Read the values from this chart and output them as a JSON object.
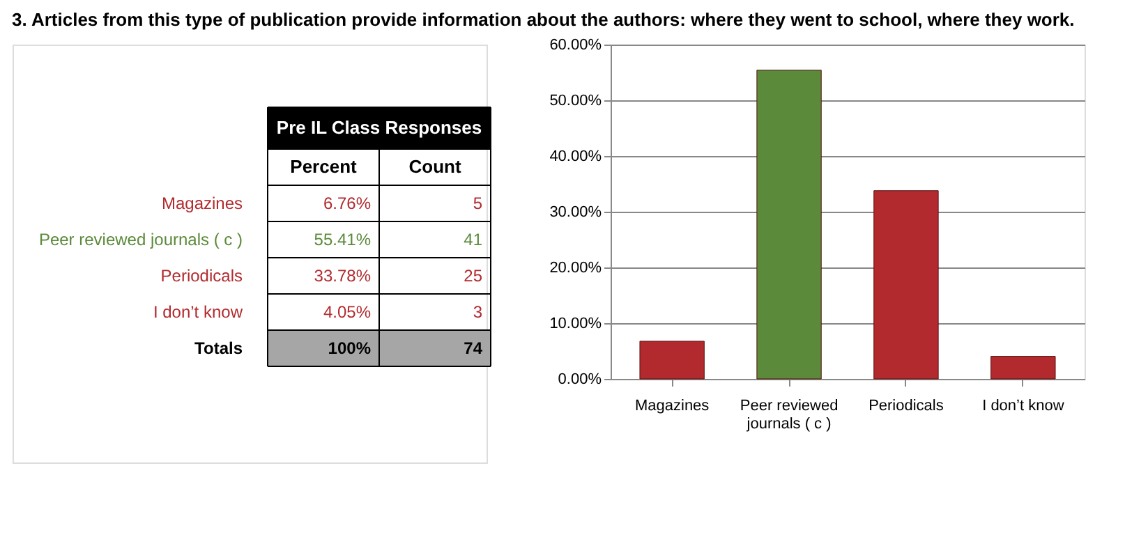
{
  "chart_data": [
    {
      "type": "other",
      "title": "3. Articles from this type of publication provide information about the authors: where they went to school, where they work.",
      "subtitle": "Pre IL Class Responses",
      "annotations": [
        "Percent",
        "Count",
        "Magazines",
        "6.76%",
        "5",
        "Peer reviewed journals ( c )",
        "55.41%",
        "41",
        "Periodicals",
        "33.78%",
        "25",
        "I don’t know",
        "4.05%",
        "3",
        "Totals",
        "100%",
        "74"
      ]
    },
    {
      "type": "bar",
      "categories": [
        "Magazines",
        "Peer reviewed journals ( c )",
        "Periodicals",
        "I don’t know"
      ],
      "values": [
        6.76,
        55.41,
        33.78,
        4.05
      ],
      "colors": [
        "#b22a2e",
        "#5b8a3a",
        "#b22a2e",
        "#b22a2e"
      ],
      "ylim": [
        0,
        60
      ],
      "yticks": [
        {
          "value": 0,
          "label": "0.00%"
        },
        {
          "value": 10,
          "label": "10.00%"
        },
        {
          "value": 20,
          "label": "20.00%"
        },
        {
          "value": 30,
          "label": "30.00%"
        },
        {
          "value": 40,
          "label": "40.00%"
        },
        {
          "value": 50,
          "label": "50.00%"
        },
        {
          "value": 60,
          "label": "60.00%"
        }
      ],
      "grid": true
    }
  ]
}
